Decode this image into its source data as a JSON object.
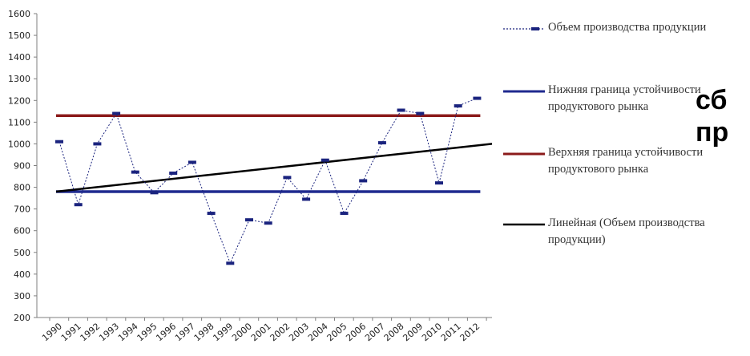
{
  "chart_data": {
    "type": "line",
    "x": [
      "1990",
      "1991",
      "1992",
      "1993",
      "1994",
      "1995",
      "1996",
      "1997",
      "1998",
      "1999",
      "2000",
      "2001",
      "2002",
      "2003",
      "2004",
      "2005",
      "2006",
      "2007",
      "2008",
      "2009",
      "2010",
      "2011",
      "2012"
    ],
    "ylim": [
      200,
      1600
    ],
    "yticks": [
      200,
      300,
      400,
      500,
      600,
      700,
      800,
      900,
      1000,
      1100,
      1200,
      1300,
      1400,
      1500,
      1600
    ],
    "grid": false,
    "legend": "right",
    "series": [
      {
        "name": "Объем производства продукции",
        "values": [
          1010,
          720,
          1000,
          1140,
          870,
          775,
          865,
          915,
          680,
          450,
          650,
          635,
          845,
          745,
          925,
          680,
          830,
          1005,
          1155,
          1140,
          820,
          1175,
          1210
        ],
        "color": "#1a237e",
        "style": "dotted-with-markers"
      },
      {
        "name": "Нижняя граница устойчивости продуктового рынка",
        "value": 780,
        "color": "#1f2a8f",
        "style": "horizontal"
      },
      {
        "name": "Верхняя граница устойчивости продуктового рынка",
        "value": 1130,
        "color": "#8b1a1a",
        "style": "horizontal"
      },
      {
        "name": "Линейная (Объем производства продукции)",
        "from": 780,
        "to": 1000,
        "color": "#000000",
        "style": "trendline"
      }
    ]
  },
  "legend": [
    {
      "label": "Объем производства продукции",
      "icon": "dotted-line-marker",
      "color": "#1a237e"
    },
    {
      "label": "Нижняя граница устойчивости продуктового рынка",
      "icon": "solid-line",
      "color": "#1f2a8f"
    },
    {
      "label": "Верхняя граница устойчивости продуктового рынка",
      "icon": "solid-line",
      "color": "#8b1a1a"
    },
    {
      "label": "Линейная (Объем производства продукции)",
      "icon": "solid-line",
      "color": "#000000"
    }
  ],
  "overlay_text": {
    "line1": "сб",
    "line2": "пр"
  }
}
